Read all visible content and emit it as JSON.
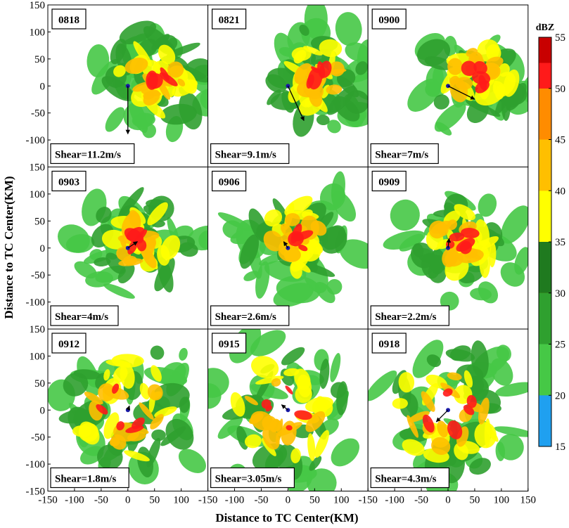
{
  "figure": {
    "xlabel": "Distance to TC Center(KM)",
    "ylabel": "Distance to TC Center(KM)",
    "ticks": [
      -150,
      -100,
      -50,
      0,
      50,
      100,
      150
    ],
    "x_tick_labels": [
      "-150",
      "-100",
      "-50",
      "0",
      "50",
      "100",
      "150"
    ],
    "y_tick_labels": [
      "-150",
      "-100",
      "-50",
      "0",
      "50",
      "100",
      "150"
    ]
  },
  "panels": [
    {
      "time": "0818",
      "shear": "Shear=11.2m/s",
      "vector": [
        0,
        -90
      ]
    },
    {
      "time": "0821",
      "shear": "Shear=9.1m/s",
      "vector": [
        30,
        -65
      ]
    },
    {
      "time": "0900",
      "shear": "Shear=7m/s",
      "vector": [
        50,
        -25
      ]
    },
    {
      "time": "0903",
      "shear": "Shear=4m/s",
      "vector": [
        18,
        12
      ]
    },
    {
      "time": "0906",
      "shear": "Shear=2.6m/s",
      "vector": [
        -8,
        12
      ]
    },
    {
      "time": "0909",
      "shear": "Shear=2.2m/s",
      "vector": [
        2,
        18
      ]
    },
    {
      "time": "0912",
      "shear": "Shear=1.8m/s",
      "vector": [
        3,
        8
      ]
    },
    {
      "time": "0915",
      "shear": "Shear=3.05m/s",
      "vector": [
        -12,
        10
      ]
    },
    {
      "time": "0918",
      "shear": "Shear=4.3m/s",
      "vector": [
        -22,
        -22
      ]
    }
  ],
  "colorbar": {
    "title": "dBZ",
    "tick_labels": [
      "55",
      "50",
      "45",
      "40",
      "35",
      "30",
      "25",
      "20",
      "15"
    ],
    "colors": [
      "#c80000",
      "#ff1a1a",
      "#ff8c00",
      "#ffbf00",
      "#ffff00",
      "#1f7a1f",
      "#2fa02f",
      "#46c846",
      "#1fa0f0"
    ]
  }
}
